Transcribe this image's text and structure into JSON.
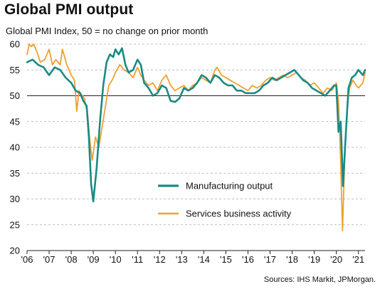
{
  "title": "Global PMI output",
  "subtitle": "Global  PMI Index, 50 = no change on prior month",
  "source": "Sources: IHS Markit, JPMorgan.",
  "chart_data": {
    "type": "line",
    "ylim": [
      20,
      60
    ],
    "yticks": [
      20,
      25,
      30,
      35,
      40,
      45,
      50,
      55,
      60
    ],
    "xlim": [
      2006.0,
      2021.3
    ],
    "xtick_labels": [
      "'06",
      "'07",
      "'08",
      "'09",
      "'10",
      "'11",
      "'12",
      "'13",
      "'14",
      "'15",
      "'16",
      "'17",
      "'18",
      "'19",
      "'20",
      "'21"
    ],
    "grid": "horizontal dashed",
    "reference_line": 50,
    "legend": "center",
    "series": [
      {
        "name": "Manufacturing output",
        "color": "#1a8a84",
        "points": [
          [
            2006.0,
            56.5
          ],
          [
            2006.25,
            57.0
          ],
          [
            2006.5,
            56.0
          ],
          [
            2006.75,
            55.5
          ],
          [
            2007.0,
            54.0
          ],
          [
            2007.25,
            55.5
          ],
          [
            2007.5,
            55.0
          ],
          [
            2007.75,
            53.5
          ],
          [
            2008.0,
            52.5
          ],
          [
            2008.2,
            51.0
          ],
          [
            2008.4,
            50.5
          ],
          [
            2008.55,
            49.0
          ],
          [
            2008.7,
            48.0
          ],
          [
            2008.8,
            42.0
          ],
          [
            2008.9,
            33.0
          ],
          [
            2009.0,
            29.5
          ],
          [
            2009.15,
            36.0
          ],
          [
            2009.3,
            45.0
          ],
          [
            2009.45,
            52.0
          ],
          [
            2009.6,
            56.5
          ],
          [
            2009.75,
            58.0
          ],
          [
            2009.9,
            57.5
          ],
          [
            2010.0,
            59.0
          ],
          [
            2010.15,
            58.0
          ],
          [
            2010.3,
            59.2
          ],
          [
            2010.45,
            56.0
          ],
          [
            2010.6,
            54.5
          ],
          [
            2010.8,
            55.0
          ],
          [
            2011.0,
            57.0
          ],
          [
            2011.15,
            56.0
          ],
          [
            2011.3,
            52.5
          ],
          [
            2011.5,
            51.5
          ],
          [
            2011.7,
            50.0
          ],
          [
            2011.9,
            50.5
          ],
          [
            2012.1,
            52.0
          ],
          [
            2012.3,
            51.5
          ],
          [
            2012.5,
            49.0
          ],
          [
            2012.7,
            48.8
          ],
          [
            2012.9,
            49.5
          ],
          [
            2013.1,
            51.5
          ],
          [
            2013.3,
            51.0
          ],
          [
            2013.5,
            51.5
          ],
          [
            2013.7,
            52.5
          ],
          [
            2013.9,
            54.0
          ],
          [
            2014.1,
            53.5
          ],
          [
            2014.3,
            52.5
          ],
          [
            2014.5,
            54.0
          ],
          [
            2014.7,
            53.5
          ],
          [
            2014.9,
            52.5
          ],
          [
            2015.1,
            52.0
          ],
          [
            2015.3,
            52.0
          ],
          [
            2015.5,
            51.0
          ],
          [
            2015.7,
            51.0
          ],
          [
            2015.9,
            50.5
          ],
          [
            2016.1,
            50.5
          ],
          [
            2016.3,
            50.5
          ],
          [
            2016.5,
            51.0
          ],
          [
            2016.7,
            52.0
          ],
          [
            2016.9,
            52.5
          ],
          [
            2017.1,
            53.5
          ],
          [
            2017.3,
            53.0
          ],
          [
            2017.5,
            53.5
          ],
          [
            2017.7,
            54.0
          ],
          [
            2017.9,
            54.5
          ],
          [
            2018.1,
            55.0
          ],
          [
            2018.3,
            54.0
          ],
          [
            2018.5,
            53.0
          ],
          [
            2018.7,
            52.5
          ],
          [
            2018.9,
            51.5
          ],
          [
            2019.1,
            51.0
          ],
          [
            2019.3,
            50.5
          ],
          [
            2019.5,
            50.0
          ],
          [
            2019.7,
            51.0
          ],
          [
            2019.9,
            52.0
          ],
          [
            2020.0,
            52.0
          ],
          [
            2020.1,
            43.0
          ],
          [
            2020.2,
            45.0
          ],
          [
            2020.3,
            32.5
          ],
          [
            2020.42,
            42.0
          ],
          [
            2020.55,
            51.5
          ],
          [
            2020.7,
            53.5
          ],
          [
            2020.85,
            54.0
          ],
          [
            2021.0,
            55.0
          ],
          [
            2021.1,
            54.5
          ],
          [
            2021.2,
            54.0
          ],
          [
            2021.3,
            55.0
          ]
        ]
      },
      {
        "name": "Services business activity",
        "color": "#f0a030",
        "points": [
          [
            2006.0,
            58.0
          ],
          [
            2006.1,
            60.0
          ],
          [
            2006.2,
            59.5
          ],
          [
            2006.3,
            60.0
          ],
          [
            2006.45,
            58.5
          ],
          [
            2006.6,
            56.5
          ],
          [
            2006.8,
            57.0
          ],
          [
            2007.0,
            59.0
          ],
          [
            2007.15,
            56.0
          ],
          [
            2007.3,
            57.0
          ],
          [
            2007.5,
            56.0
          ],
          [
            2007.6,
            59.0
          ],
          [
            2007.8,
            56.0
          ],
          [
            2008.0,
            54.0
          ],
          [
            2008.15,
            53.0
          ],
          [
            2008.25,
            47.0
          ],
          [
            2008.35,
            51.0
          ],
          [
            2008.5,
            50.0
          ],
          [
            2008.6,
            49.5
          ],
          [
            2008.75,
            46.0
          ],
          [
            2008.85,
            41.0
          ],
          [
            2008.95,
            37.5
          ],
          [
            2009.1,
            42.0
          ],
          [
            2009.25,
            40.0
          ],
          [
            2009.4,
            44.0
          ],
          [
            2009.55,
            48.0
          ],
          [
            2009.7,
            52.0
          ],
          [
            2009.85,
            53.0
          ],
          [
            2010.0,
            54.5
          ],
          [
            2010.2,
            56.0
          ],
          [
            2010.4,
            55.0
          ],
          [
            2010.6,
            54.5
          ],
          [
            2010.8,
            53.5
          ],
          [
            2011.0,
            55.5
          ],
          [
            2011.15,
            54.0
          ],
          [
            2011.3,
            53.0
          ],
          [
            2011.5,
            52.0
          ],
          [
            2011.7,
            52.5
          ],
          [
            2011.9,
            51.0
          ],
          [
            2012.1,
            53.0
          ],
          [
            2012.3,
            54.0
          ],
          [
            2012.5,
            52.0
          ],
          [
            2012.7,
            51.0
          ],
          [
            2012.9,
            51.5
          ],
          [
            2013.1,
            52.0
          ],
          [
            2013.3,
            51.0
          ],
          [
            2013.5,
            52.0
          ],
          [
            2013.7,
            52.5
          ],
          [
            2013.9,
            53.5
          ],
          [
            2014.1,
            53.0
          ],
          [
            2014.3,
            52.5
          ],
          [
            2014.5,
            55.0
          ],
          [
            2014.6,
            55.5
          ],
          [
            2014.8,
            54.0
          ],
          [
            2015.0,
            53.5
          ],
          [
            2015.2,
            53.0
          ],
          [
            2015.4,
            52.5
          ],
          [
            2015.6,
            52.0
          ],
          [
            2015.8,
            51.5
          ],
          [
            2016.0,
            51.0
          ],
          [
            2016.2,
            52.0
          ],
          [
            2016.4,
            51.5
          ],
          [
            2016.6,
            52.0
          ],
          [
            2016.8,
            53.0
          ],
          [
            2017.0,
            53.5
          ],
          [
            2017.2,
            53.0
          ],
          [
            2017.4,
            53.5
          ],
          [
            2017.6,
            54.0
          ],
          [
            2017.8,
            53.5
          ],
          [
            2018.0,
            54.0
          ],
          [
            2018.2,
            54.5
          ],
          [
            2018.4,
            53.5
          ],
          [
            2018.6,
            53.0
          ],
          [
            2018.8,
            52.0
          ],
          [
            2019.0,
            52.5
          ],
          [
            2019.2,
            51.5
          ],
          [
            2019.4,
            50.5
          ],
          [
            2019.6,
            51.5
          ],
          [
            2019.8,
            51.0
          ],
          [
            2020.0,
            52.5
          ],
          [
            2020.1,
            49.0
          ],
          [
            2020.2,
            37.0
          ],
          [
            2020.28,
            23.8
          ],
          [
            2020.38,
            38.0
          ],
          [
            2020.5,
            48.0
          ],
          [
            2020.6,
            51.5
          ],
          [
            2020.75,
            53.0
          ],
          [
            2020.9,
            52.0
          ],
          [
            2021.0,
            51.5
          ],
          [
            2021.1,
            52.0
          ],
          [
            2021.2,
            52.5
          ],
          [
            2021.3,
            54.5
          ]
        ]
      }
    ]
  }
}
